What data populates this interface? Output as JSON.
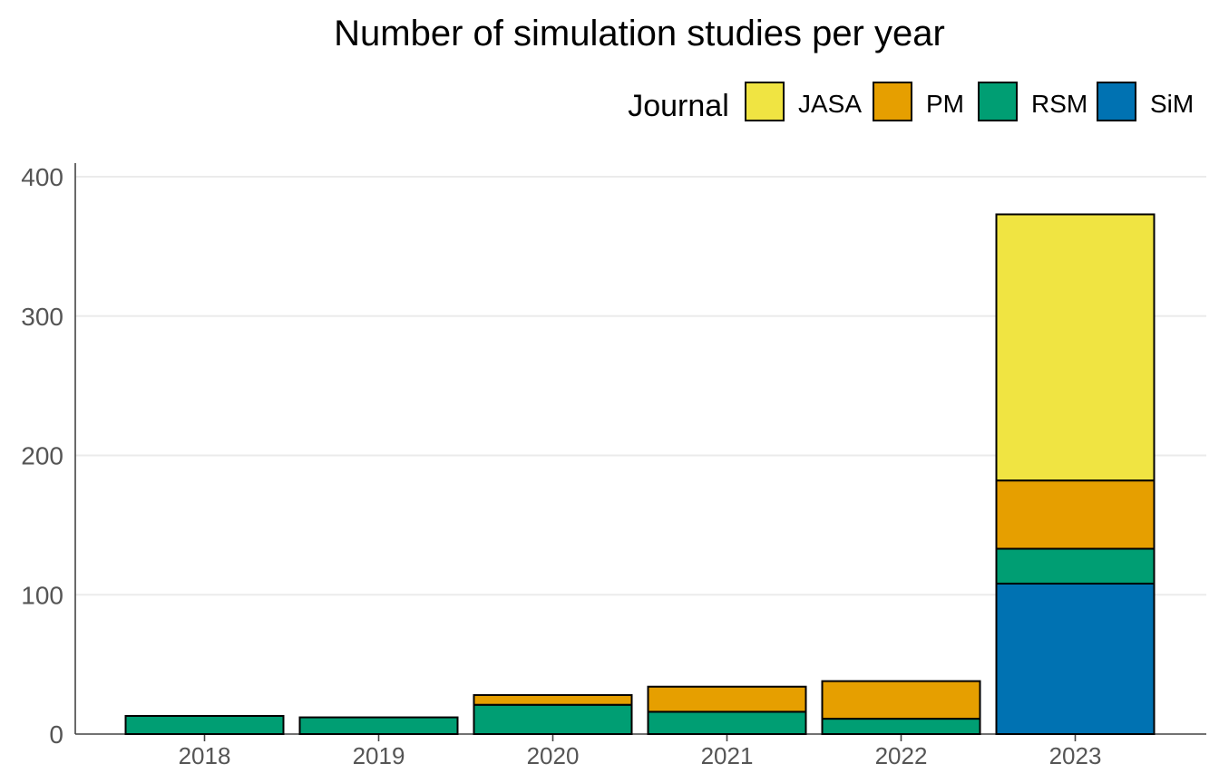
{
  "chart_data": {
    "type": "bar",
    "stacked": true,
    "title": "Number of simulation studies per year",
    "xlabel": "",
    "ylabel": "",
    "categories": [
      "2018",
      "2019",
      "2020",
      "2021",
      "2022",
      "2023"
    ],
    "ylim": [
      0,
      410
    ],
    "yticks": [
      0,
      100,
      200,
      300,
      400
    ],
    "grid": "horizontal",
    "legend": {
      "title": "Journal",
      "placement": "top-right"
    },
    "series": [
      {
        "name": "SiM",
        "color": "#0072B2",
        "values": [
          0,
          0,
          0,
          0,
          0,
          108
        ]
      },
      {
        "name": "RSM",
        "color": "#009E73",
        "values": [
          13,
          12,
          21,
          16,
          11,
          25
        ]
      },
      {
        "name": "PM",
        "color": "#E69F00",
        "values": [
          0,
          0,
          7,
          18,
          27,
          49
        ]
      },
      {
        "name": "JASA",
        "color": "#F0E442",
        "values": [
          0,
          0,
          0,
          0,
          0,
          191
        ]
      }
    ],
    "legend_order": [
      "JASA",
      "PM",
      "RSM",
      "SiM"
    ]
  }
}
